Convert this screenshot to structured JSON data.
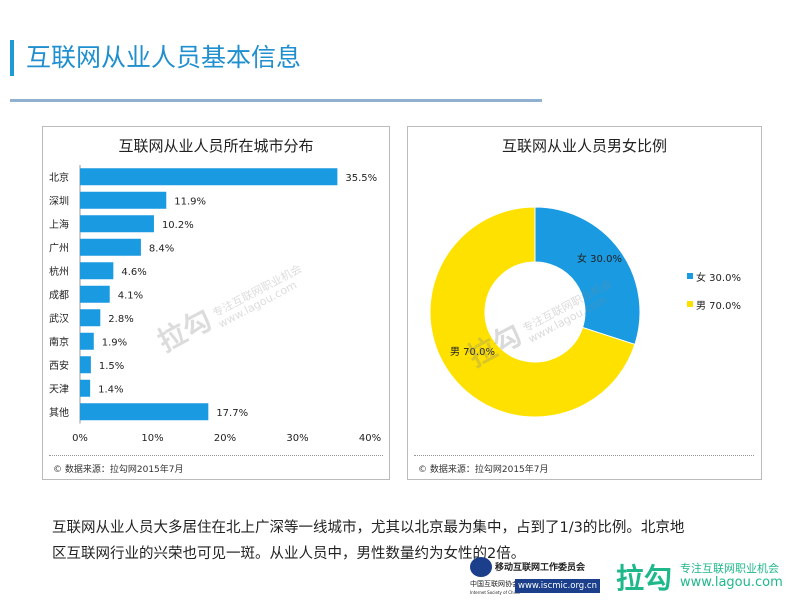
{
  "header": {
    "title": "互联网从业人员基本信息"
  },
  "colors": {
    "accent": "#1e9ad6",
    "bar": "#1a9ae0",
    "female": "#1a9ae0",
    "male": "#ffe100"
  },
  "chart_data": [
    {
      "type": "bar",
      "orientation": "horizontal",
      "title": "互联网从业人员所在城市分布",
      "categories": [
        "北京",
        "深圳",
        "上海",
        "广州",
        "杭州",
        "成都",
        "武汉",
        "南京",
        "西安",
        "天津",
        "其他"
      ],
      "values": [
        35.5,
        11.9,
        10.2,
        8.4,
        4.6,
        4.1,
        2.8,
        1.9,
        1.5,
        1.4,
        17.7
      ],
      "data_labels": [
        "35.5%",
        "11.9%",
        "10.2%",
        "8.4%",
        "4.6%",
        "4.1%",
        "2.8%",
        "1.9%",
        "1.5%",
        "1.4%",
        "17.7%"
      ],
      "xticks": [
        "0%",
        "10%",
        "20%",
        "30%",
        "40%"
      ],
      "xlim": [
        0,
        40
      ],
      "grid": false,
      "source": "© 数据来源：拉勾网2015年7月"
    },
    {
      "type": "pie",
      "donut": true,
      "title": "互联网从业人员男女比例",
      "categories": [
        "女",
        "男"
      ],
      "values": [
        30.0,
        70.0
      ],
      "data_labels": [
        "女 30.0%",
        "男 70.0%"
      ],
      "legend": [
        "女 30.0%",
        "男 70.0%"
      ],
      "legend_position": "right",
      "source": "© 数据来源：拉勾网2015年7月"
    }
  ],
  "summary": {
    "line1": "互联网从业人员大多居住在北上广深等一线城市，尤其以北京最为集中，占到了1/3的比例。北京地",
    "line2": "区互联网行业的兴荣也可见一斑。从业人员中，男性数量约为女性的2倍。"
  },
  "watermark": {
    "brand": "拉勾",
    "slogan": "专注互联网职业机会",
    "url": "www.lagou.com"
  },
  "footer": {
    "iscmic_name": "移动互联网工作委员会",
    "isc_name": "中国互联网协会",
    "isc_en": "Internet Society of China",
    "iscmic_url": "www.iscmic.org.cn",
    "lagou_brand": "拉勾",
    "lagou_slogan": "专注互联网职业机会",
    "lagou_url": "www.lagou.com"
  }
}
